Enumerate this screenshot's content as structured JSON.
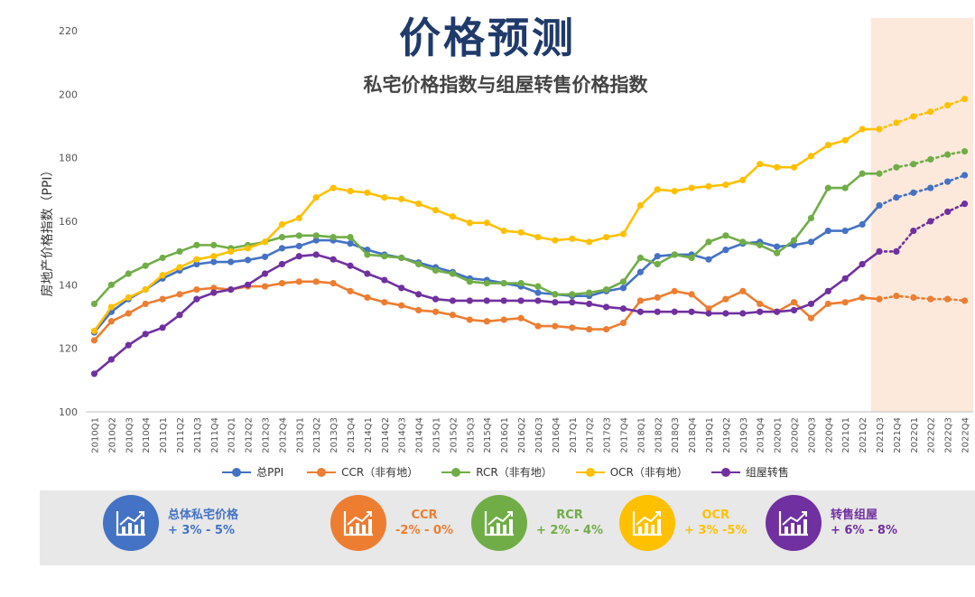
{
  "title": "价格预测",
  "subtitle": "私宅价格指数与组屋转售价格指数",
  "chart_data": {
    "type": "line",
    "ylabel": "房地产价格指数（PPI）",
    "xlabel": "",
    "ylim": [
      100,
      220
    ],
    "yticks": [
      100,
      120,
      140,
      160,
      180,
      200,
      220
    ],
    "forecast_shading_start": "2021Q3",
    "forecast_shading_end": "2022Q4",
    "x": [
      "2010Q1",
      "2010Q2",
      "2010Q3",
      "2010Q4",
      "2011Q1",
      "2011Q2",
      "2011Q3",
      "2011Q4",
      "2012Q1",
      "2012Q2",
      "2012Q3",
      "2012Q4",
      "2013Q1",
      "2013Q2",
      "2013Q3",
      "2013Q4",
      "2014Q1",
      "2014Q2",
      "2014Q3",
      "2014Q4",
      "2015Q1",
      "2015Q2",
      "2015Q3",
      "2015Q4",
      "2016Q1",
      "2016Q2",
      "2016Q3",
      "2016Q4",
      "2017Q1",
      "2017Q2",
      "2017Q3",
      "2017Q4",
      "2018Q1",
      "2018Q2",
      "2018Q3",
      "2018Q4",
      "2019Q1",
      "2019Q2",
      "2019Q3",
      "2019Q4",
      "2020Q1",
      "2020Q2",
      "2020Q3",
      "2020Q4",
      "2021Q1",
      "2021Q2",
      "2021Q3",
      "2021Q4",
      "2022Q1",
      "2022Q2",
      "2022Q3",
      "2022Q4"
    ],
    "series": [
      {
        "name": "总PPI",
        "color": "#4472c4",
        "values": [
          125,
          131.5,
          135.5,
          138.5,
          142,
          144.5,
          146.5,
          147.2,
          147.2,
          147.8,
          148.8,
          151.5,
          152.2,
          154,
          154,
          153,
          151,
          149.5,
          148.5,
          147,
          145.5,
          144,
          142,
          141.5,
          140.5,
          139.5,
          137.5,
          137,
          136.5,
          136.5,
          138,
          139,
          144,
          149,
          149.5,
          149.5,
          148,
          151,
          153,
          153.5,
          152,
          152.5,
          153.5,
          157,
          157,
          159,
          165,
          167.5,
          169,
          170.5,
          172.5,
          174.5
        ]
      },
      {
        "name": "CCR（非有地）",
        "color": "#ed7d31",
        "values": [
          122.5,
          128.5,
          131,
          134,
          135.5,
          137,
          138.5,
          139,
          138.5,
          139.5,
          139.5,
          140.5,
          141,
          141,
          140.5,
          138,
          136,
          134.5,
          133.5,
          132,
          131.5,
          130.5,
          129,
          128.5,
          129,
          129.5,
          127,
          127,
          126.5,
          126,
          126,
          128,
          135,
          136,
          138,
          137,
          132.5,
          135.5,
          138,
          134,
          131.5,
          134.5,
          129.5,
          134,
          134.5,
          136,
          135.5,
          136.5,
          136,
          135.5,
          135.5,
          135
        ]
      },
      {
        "name": "RCR（非有地）",
        "color": "#70ad47",
        "values": [
          134,
          140,
          143.5,
          146,
          148.5,
          150.5,
          152.5,
          152.5,
          151.5,
          152.5,
          153.5,
          155,
          155.5,
          155.5,
          155,
          155,
          149.5,
          149,
          148.5,
          146.5,
          144.5,
          143.5,
          141,
          140.5,
          140.5,
          140.5,
          139.5,
          137,
          137,
          137.5,
          138.5,
          141,
          148.5,
          146.5,
          149.5,
          148.5,
          153.5,
          155.5,
          153.5,
          152.5,
          150,
          154,
          161,
          170.5,
          170.5,
          175,
          175,
          177,
          178,
          179.5,
          181,
          182
        ]
      },
      {
        "name": "OCR（非有地）",
        "color": "#ffc000",
        "values": [
          125.5,
          133,
          136,
          138.5,
          143,
          145.5,
          148,
          149,
          150.5,
          151.5,
          153.5,
          159,
          161,
          167.5,
          170.5,
          169.5,
          169,
          167.5,
          167,
          165.5,
          163.5,
          161.5,
          159.5,
          159.5,
          157,
          156.5,
          155,
          154,
          154.5,
          153.5,
          155,
          156,
          165,
          170,
          169.5,
          170.5,
          171,
          171.5,
          173,
          178,
          177,
          177,
          180.5,
          184,
          185.5,
          189,
          189,
          191,
          193,
          194.5,
          196.5,
          198.5
        ]
      },
      {
        "name": "组屋转售",
        "color": "#7030a0",
        "values": [
          112,
          116.5,
          121,
          124.5,
          126.5,
          130.5,
          135.5,
          137.5,
          138.5,
          140,
          143.5,
          146.5,
          149,
          149.5,
          148,
          146,
          143.5,
          141.5,
          139,
          137,
          135.5,
          135,
          135,
          135,
          135,
          135,
          135,
          134.5,
          134.5,
          134,
          133,
          132.5,
          131.5,
          131.5,
          131.5,
          131.5,
          131,
          131,
          131,
          131.5,
          131.5,
          132,
          134,
          138,
          142,
          146.5,
          150.5,
          150.5,
          157,
          160,
          163,
          165.5
        ]
      }
    ]
  },
  "forecasts": [
    {
      "name": "总体私宅价格",
      "range": "+ 3% - 5%",
      "color": "#4472c4",
      "icon": "chart-growth-icon"
    },
    {
      "name": "CCR",
      "range": "-2% - 0%",
      "color": "#ed7d31",
      "icon": "chart-growth-icon"
    },
    {
      "name": "RCR",
      "range": "+ 2% - 4%",
      "color": "#70ad47",
      "icon": "chart-growth-icon"
    },
    {
      "name": "OCR",
      "range": "+ 3% -5%",
      "color": "#ffc000",
      "icon": "chart-growth-icon"
    },
    {
      "name": "转售组屋",
      "range": "+ 6% - 8%",
      "color": "#7030a0",
      "icon": "chart-growth-icon"
    }
  ]
}
